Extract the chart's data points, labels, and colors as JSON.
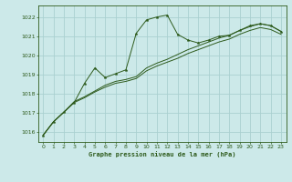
{
  "title": "Graphe pression niveau de la mer (hPa)",
  "background_color": "#cce9e9",
  "grid_color": "#aad0d0",
  "line_color": "#2d5a1b",
  "xlim": [
    -0.5,
    23.5
  ],
  "ylim": [
    1015.5,
    1022.6
  ],
  "yticks": [
    1016,
    1017,
    1018,
    1019,
    1020,
    1021,
    1022
  ],
  "xticks": [
    0,
    1,
    2,
    3,
    4,
    5,
    6,
    7,
    8,
    9,
    10,
    11,
    12,
    13,
    14,
    15,
    16,
    17,
    18,
    19,
    20,
    21,
    22,
    23
  ],
  "series1_x": [
    0,
    1,
    2,
    3,
    4,
    5,
    6,
    7,
    8,
    9,
    10,
    11,
    12,
    13,
    14,
    15,
    16,
    17,
    18,
    19,
    20,
    21,
    22,
    23
  ],
  "series1_y": [
    1015.85,
    1016.55,
    1017.05,
    1017.55,
    1018.55,
    1019.35,
    1018.85,
    1019.05,
    1019.25,
    1021.15,
    1021.85,
    1022.0,
    1022.1,
    1021.1,
    1020.8,
    1020.65,
    1020.8,
    1021.0,
    1021.05,
    1021.3,
    1021.55,
    1021.65,
    1021.55,
    1021.25
  ],
  "series2_x": [
    0,
    1,
    2,
    3,
    4,
    5,
    6,
    7,
    8,
    9,
    10,
    11,
    12,
    13,
    14,
    15,
    16,
    17,
    18,
    19,
    20,
    21,
    22,
    23
  ],
  "series2_y": [
    1015.85,
    1016.55,
    1017.05,
    1017.6,
    1017.85,
    1018.15,
    1018.45,
    1018.65,
    1018.75,
    1018.9,
    1019.35,
    1019.6,
    1019.8,
    1020.05,
    1020.3,
    1020.5,
    1020.7,
    1020.9,
    1021.05,
    1021.3,
    1021.5,
    1021.65,
    1021.55,
    1021.25
  ],
  "series3_x": [
    0,
    1,
    2,
    3,
    4,
    5,
    6,
    7,
    8,
    9,
    10,
    11,
    12,
    13,
    14,
    15,
    16,
    17,
    18,
    19,
    20,
    21,
    22,
    23
  ],
  "series3_y": [
    1015.85,
    1016.55,
    1017.05,
    1017.55,
    1017.8,
    1018.1,
    1018.35,
    1018.55,
    1018.65,
    1018.8,
    1019.2,
    1019.45,
    1019.65,
    1019.85,
    1020.1,
    1020.3,
    1020.5,
    1020.7,
    1020.85,
    1021.1,
    1021.3,
    1021.45,
    1021.35,
    1021.1
  ]
}
